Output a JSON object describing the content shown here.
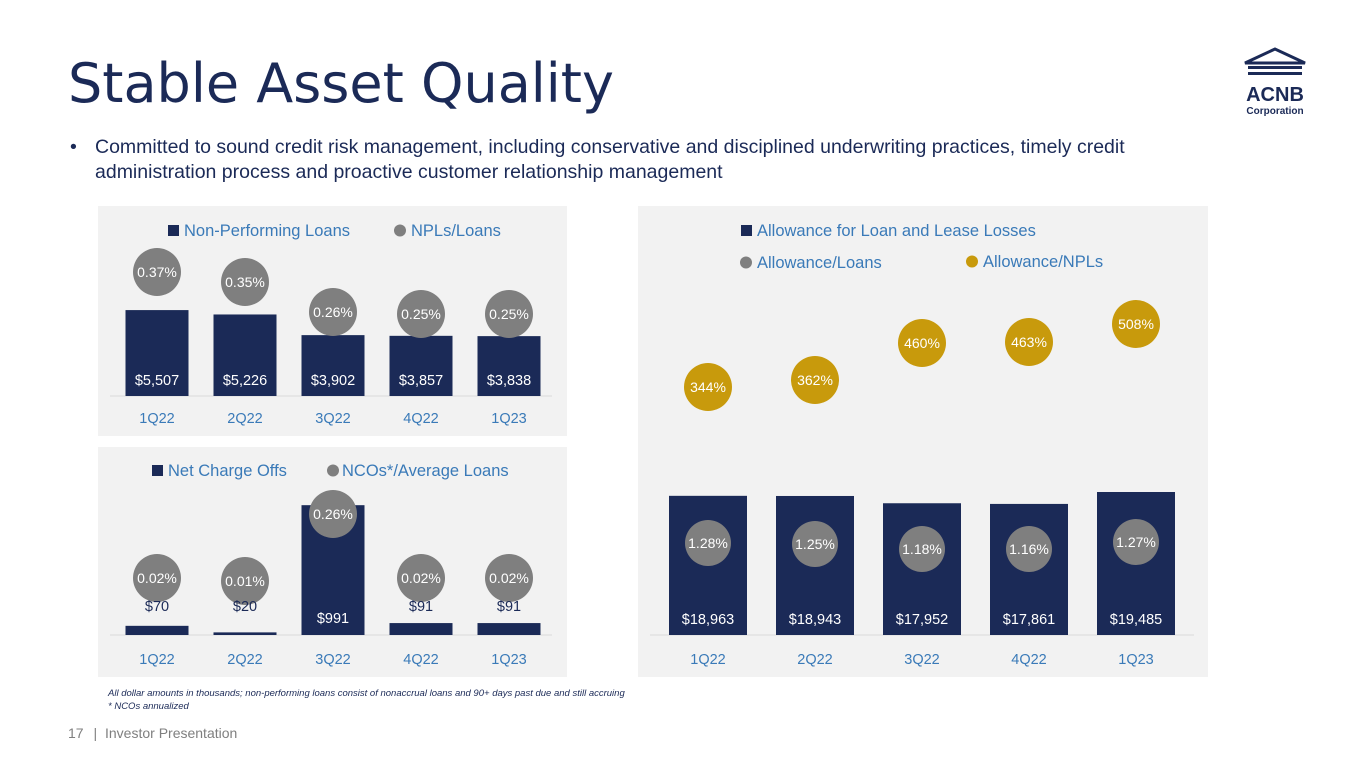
{
  "page": {
    "title": "Stable Asset Quality",
    "bullet": "Committed to sound credit risk management, including conservative and disciplined underwriting practices, timely credit administration process and proactive customer relationship management",
    "logo_line1": "ACNB",
    "logo_line2": "Corporation",
    "footnote1": "All dollar amounts in thousands; non-performing loans consist of nonaccrual loans and 90+ days past due and still accruing",
    "footnote2": "* NCOs annualized",
    "page_number": "17",
    "separator": "|",
    "footer_text": "Investor Presentation"
  },
  "colors": {
    "navy": "#1b2a57",
    "gray_bubble": "#7f7f7f",
    "gold_bubble": "#c89a0c",
    "axis_label": "#3a7ab8",
    "panel_bg": "#f2f2f2"
  },
  "chart_data": [
    {
      "id": "npl",
      "type": "bar",
      "categories": [
        "1Q22",
        "2Q22",
        "3Q22",
        "4Q22",
        "1Q23"
      ],
      "series": [
        {
          "name": "Non-Performing Loans",
          "values": [
            5507,
            5226,
            3902,
            3857,
            3838
          ],
          "labels": [
            "$5,507",
            "$5,226",
            "$3,902",
            "$3,857",
            "$3,838"
          ]
        },
        {
          "name": "NPLs/Loans",
          "values": [
            0.37,
            0.35,
            0.26,
            0.25,
            0.25
          ],
          "labels": [
            "0.37%",
            "0.35%",
            "0.26%",
            "0.25%",
            "0.25%"
          ]
        }
      ],
      "ylim": [
        0,
        7500
      ]
    },
    {
      "id": "nco",
      "type": "bar",
      "categories": [
        "1Q22",
        "2Q22",
        "3Q22",
        "4Q22",
        "1Q23"
      ],
      "series": [
        {
          "name": "Net Charge Offs",
          "values": [
            70,
            20,
            991,
            91,
            91
          ],
          "labels": [
            "$70",
            "$20",
            "$991",
            "$91",
            "$91"
          ]
        },
        {
          "name": "NCOs*/Average Loans",
          "values": [
            0.02,
            0.01,
            0.26,
            0.02,
            0.02
          ],
          "labels": [
            "0.02%",
            "0.01%",
            "0.26%",
            "0.02%",
            "0.02%"
          ]
        }
      ],
      "ylim": [
        0,
        1000
      ]
    },
    {
      "id": "allowance",
      "type": "bar",
      "categories": [
        "1Q22",
        "2Q22",
        "3Q22",
        "4Q22",
        "1Q23"
      ],
      "series": [
        {
          "name": "Allowance for Loan and Lease Losses",
          "values": [
            18963,
            18943,
            17952,
            17861,
            19485
          ],
          "labels": [
            "$18,963",
            "$18,943",
            "$17,952",
            "$17,861",
            "$19,485"
          ]
        },
        {
          "name": "Allowance/Loans",
          "values": [
            1.28,
            1.25,
            1.18,
            1.16,
            1.27
          ],
          "labels": [
            "1.28%",
            "1.25%",
            "1.18%",
            "1.16%",
            "1.27%"
          ]
        },
        {
          "name": "Allowance/NPLs",
          "values": [
            344,
            362,
            460,
            463,
            508
          ],
          "labels": [
            "344%",
            "362%",
            "460%",
            "463%",
            "508%"
          ]
        }
      ],
      "ylim": [
        0,
        20000
      ]
    }
  ]
}
